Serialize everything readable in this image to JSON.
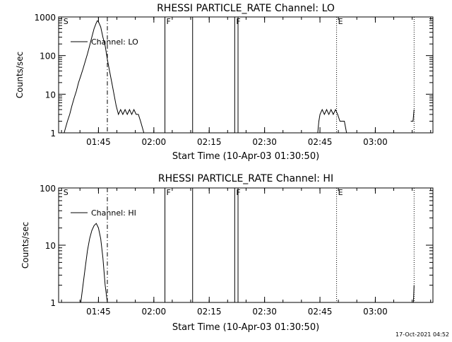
{
  "footer_timestamp": "17-Oct-2021 04:52",
  "chart_data": [
    {
      "type": "line",
      "title": "RHESSI PARTICLE_RATE Channel: LO",
      "xlabel": "Start Time (10-Apr-03 01:30:50)",
      "ylabel": "Counts/sec",
      "yscale": "log",
      "xlim": [
        1.57,
        3.26
      ],
      "ylim": [
        1,
        1000
      ],
      "xticks": [
        {
          "v": 1.75,
          "label": "01:45"
        },
        {
          "v": 2.0,
          "label": "02:00"
        },
        {
          "v": 2.25,
          "label": "02:15"
        },
        {
          "v": 2.5,
          "label": "02:30"
        },
        {
          "v": 2.75,
          "label": "02:45"
        },
        {
          "v": 3.0,
          "label": "03:00"
        }
      ],
      "yticks": [
        {
          "v": 1,
          "label": "1"
        },
        {
          "v": 10,
          "label": "10"
        },
        {
          "v": 100,
          "label": "100"
        },
        {
          "v": 1000,
          "label": "1000"
        }
      ],
      "legend": "Channel: LO",
      "legend_position": "top-left",
      "markers": [
        {
          "x": 1.585,
          "label": "S"
        },
        {
          "x": 2.05,
          "label": "F"
        },
        {
          "x": 2.365,
          "label": "F"
        },
        {
          "x": 2.825,
          "label": "E"
        }
      ],
      "vlines": [
        {
          "x": 1.79,
          "style": "dashdot"
        },
        {
          "x": 2.05,
          "style": "solid"
        },
        {
          "x": 2.175,
          "style": "solid"
        },
        {
          "x": 2.365,
          "style": "solid"
        },
        {
          "x": 2.38,
          "style": "solid"
        },
        {
          "x": 2.825,
          "style": "dotted"
        },
        {
          "x": 3.175,
          "style": "dotted"
        }
      ],
      "series": [
        {
          "segments": [
            [
              [
                1.595,
                1
              ],
              [
                1.61,
                2
              ],
              [
                1.62,
                3
              ],
              [
                1.63,
                5
              ],
              [
                1.64,
                8
              ],
              [
                1.65,
                12
              ],
              [
                1.66,
                20
              ],
              [
                1.67,
                30
              ],
              [
                1.68,
                45
              ],
              [
                1.69,
                70
              ],
              [
                1.7,
                110
              ],
              [
                1.71,
                180
              ],
              [
                1.72,
                300
              ],
              [
                1.73,
                500
              ],
              [
                1.74,
                700
              ],
              [
                1.745,
                800
              ],
              [
                1.75,
                750
              ],
              [
                1.76,
                550
              ],
              [
                1.77,
                300
              ],
              [
                1.78,
                180
              ],
              [
                1.79,
                80
              ],
              [
                1.8,
                40
              ],
              [
                1.81,
                20
              ],
              [
                1.82,
                10
              ],
              [
                1.83,
                5
              ],
              [
                1.84,
                3
              ],
              [
                1.85,
                4
              ],
              [
                1.86,
                3
              ],
              [
                1.87,
                4
              ],
              [
                1.88,
                3
              ],
              [
                1.89,
                4
              ],
              [
                1.9,
                3
              ],
              [
                1.91,
                4
              ],
              [
                1.92,
                3
              ],
              [
                1.93,
                3
              ],
              [
                1.94,
                2
              ],
              [
                1.955,
                1
              ]
            ],
            [
              [
                2.74,
                1
              ],
              [
                2.745,
                2
              ],
              [
                2.75,
                3
              ],
              [
                2.76,
                4
              ],
              [
                2.77,
                3
              ],
              [
                2.78,
                4
              ],
              [
                2.79,
                3
              ],
              [
                2.8,
                4
              ],
              [
                2.81,
                3
              ],
              [
                2.82,
                4
              ],
              [
                2.83,
                3
              ],
              [
                2.84,
                2
              ],
              [
                2.86,
                2
              ],
              [
                2.87,
                1
              ]
            ],
            [
              [
                3.16,
                2
              ],
              [
                3.17,
                2
              ],
              [
                3.175,
                4
              ]
            ]
          ]
        }
      ]
    },
    {
      "type": "line",
      "title": "RHESSI PARTICLE_RATE Channel: HI",
      "xlabel": "Start Time (10-Apr-03 01:30:50)",
      "ylabel": "Counts/sec",
      "yscale": "log",
      "xlim": [
        1.57,
        3.26
      ],
      "ylim": [
        1,
        100
      ],
      "xticks": [
        {
          "v": 1.75,
          "label": "01:45"
        },
        {
          "v": 2.0,
          "label": "02:00"
        },
        {
          "v": 2.25,
          "label": "02:15"
        },
        {
          "v": 2.5,
          "label": "02:30"
        },
        {
          "v": 2.75,
          "label": "02:45"
        },
        {
          "v": 3.0,
          "label": "03:00"
        }
      ],
      "yticks": [
        {
          "v": 1,
          "label": "1"
        },
        {
          "v": 10,
          "label": "10"
        },
        {
          "v": 100,
          "label": "100"
        }
      ],
      "legend": "Channel: HI",
      "legend_position": "top-left",
      "markers": [
        {
          "x": 1.585,
          "label": "S"
        },
        {
          "x": 2.05,
          "label": "F"
        },
        {
          "x": 2.365,
          "label": "F"
        },
        {
          "x": 2.825,
          "label": "E"
        }
      ],
      "vlines": [
        {
          "x": 1.79,
          "style": "dashdot"
        },
        {
          "x": 2.05,
          "style": "solid"
        },
        {
          "x": 2.175,
          "style": "solid"
        },
        {
          "x": 2.365,
          "style": "solid"
        },
        {
          "x": 2.38,
          "style": "solid"
        },
        {
          "x": 2.825,
          "style": "dotted"
        },
        {
          "x": 3.175,
          "style": "dotted"
        }
      ],
      "series": [
        {
          "segments": [
            [
              [
                1.67,
                1
              ],
              [
                1.68,
                2
              ],
              [
                1.69,
                4
              ],
              [
                1.7,
                8
              ],
              [
                1.71,
                13
              ],
              [
                1.72,
                18
              ],
              [
                1.73,
                22
              ],
              [
                1.74,
                24
              ],
              [
                1.75,
                20
              ],
              [
                1.76,
                13
              ],
              [
                1.77,
                6
              ],
              [
                1.78,
                2
              ],
              [
                1.79,
                1
              ]
            ],
            [
              [
                3.172,
                1
              ],
              [
                3.175,
                2
              ]
            ]
          ]
        }
      ]
    }
  ]
}
